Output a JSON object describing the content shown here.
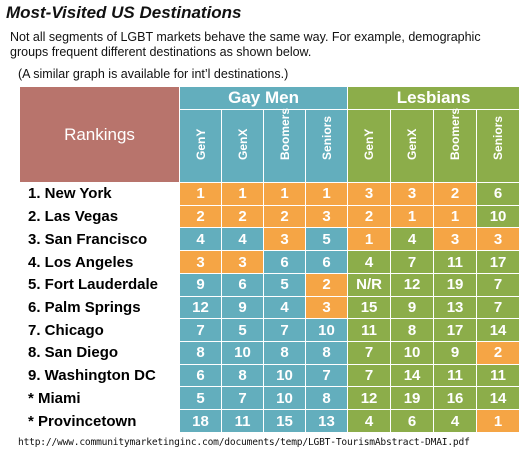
{
  "title": "Most-Visited US Destinations",
  "intro": "Not all segments of LGBT markets behave the same way. For example, demographic groups frequent different destinations as shown below.",
  "note": "(A similar graph is available for int’l destinations.)",
  "source_url": "http://www.communitymarketinginc.com/documents/temp/LGBT-TourismAbstract-DMAI.pdf",
  "colors": {
    "orange": "#f5a545",
    "blue": "#63aebd",
    "green": "#8cad4a",
    "rank_header": "#b8746c"
  },
  "table": {
    "rank_header": "Rankings",
    "groups": [
      {
        "label": "Gay Men",
        "color": "blue",
        "columns": [
          "GenY",
          "GenX",
          "Boomers",
          "Seniors"
        ]
      },
      {
        "label": "Lesbians",
        "color": "green",
        "columns": [
          "GenY",
          "GenX",
          "Boomers",
          "Seniors"
        ]
      }
    ],
    "rows": [
      {
        "city": "1. New York",
        "values": [
          "1",
          "1",
          "1",
          "1",
          "3",
          "3",
          "2",
          "6"
        ],
        "hl": [
          1,
          1,
          1,
          1,
          1,
          1,
          1,
          0
        ]
      },
      {
        "city": "2. Las Vegas",
        "values": [
          "2",
          "2",
          "2",
          "3",
          "2",
          "1",
          "1",
          "10"
        ],
        "hl": [
          1,
          1,
          1,
          1,
          1,
          1,
          1,
          0
        ]
      },
      {
        "city": "3. San Francisco",
        "values": [
          "4",
          "4",
          "3",
          "5",
          "1",
          "4",
          "3",
          "3"
        ],
        "hl": [
          0,
          0,
          1,
          0,
          1,
          0,
          1,
          1
        ]
      },
      {
        "city": "4. Los Angeles",
        "values": [
          "3",
          "3",
          "6",
          "6",
          "4",
          "7",
          "11",
          "17"
        ],
        "hl": [
          1,
          1,
          0,
          0,
          0,
          0,
          0,
          0
        ]
      },
      {
        "city": "5. Fort Lauderdale",
        "values": [
          "9",
          "6",
          "5",
          "2",
          "N/R",
          "12",
          "19",
          "7"
        ],
        "hl": [
          0,
          0,
          0,
          1,
          0,
          0,
          0,
          0
        ]
      },
      {
        "city": "6. Palm Springs",
        "values": [
          "12",
          "9",
          "4",
          "3",
          "15",
          "9",
          "13",
          "7"
        ],
        "hl": [
          0,
          0,
          0,
          1,
          0,
          0,
          0,
          0
        ]
      },
      {
        "city": "7. Chicago",
        "values": [
          "7",
          "5",
          "7",
          "10",
          "11",
          "8",
          "17",
          "14"
        ],
        "hl": [
          0,
          0,
          0,
          0,
          0,
          0,
          0,
          0
        ]
      },
      {
        "city": "8. San Diego",
        "values": [
          "8",
          "10",
          "8",
          "8",
          "7",
          "10",
          "9",
          "2"
        ],
        "hl": [
          0,
          0,
          0,
          0,
          0,
          0,
          0,
          1
        ]
      },
      {
        "city": "9. Washington DC",
        "values": [
          "6",
          "8",
          "10",
          "7",
          "7",
          "14",
          "11",
          "11"
        ],
        "hl": [
          0,
          0,
          0,
          0,
          0,
          0,
          0,
          0
        ]
      },
      {
        "city": "*  Miami",
        "values": [
          "5",
          "7",
          "10",
          "8",
          "12",
          "19",
          "16",
          "14"
        ],
        "hl": [
          0,
          0,
          0,
          0,
          0,
          0,
          0,
          0
        ]
      },
      {
        "city": "*  Provincetown",
        "values": [
          "18",
          "11",
          "15",
          "13",
          "4",
          "6",
          "4",
          "1"
        ],
        "hl": [
          0,
          0,
          0,
          0,
          0,
          0,
          0,
          1
        ]
      }
    ]
  }
}
